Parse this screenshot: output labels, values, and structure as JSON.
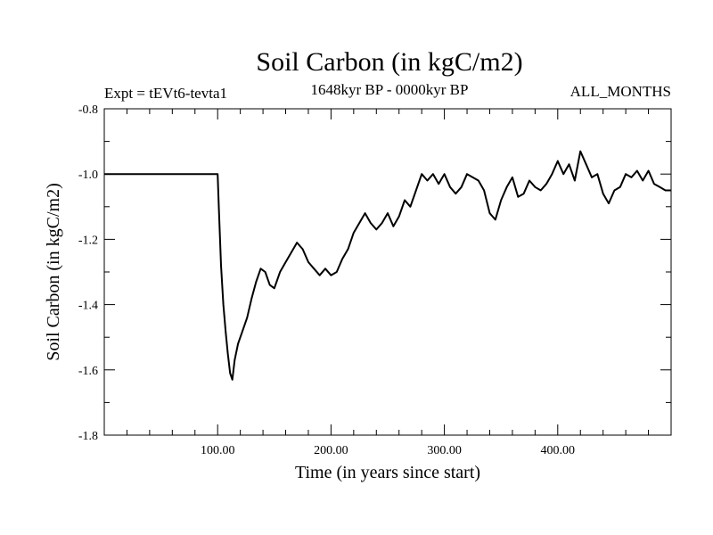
{
  "header": {
    "title": "Soil Carbon (in kgC/m2)",
    "experiment": "Expt = tEVt6-tevta1",
    "period": "1648kyr BP - 0000kyr BP",
    "season": "ALL_MONTHS"
  },
  "chart_data": {
    "type": "line",
    "title": "Soil Carbon (in kgC/m2)",
    "xlabel": "Time (in years since start)",
    "ylabel": "Soil Carbon (in kgC/m2)",
    "xlim": [
      0,
      500
    ],
    "ylim": [
      -1.8,
      -0.8
    ],
    "x_ticks": [
      100,
      200,
      300,
      400
    ],
    "x_tick_labels": [
      "100.00",
      "200.00",
      "300.00",
      "400.00"
    ],
    "y_ticks": [
      -1.8,
      -1.6,
      -1.4,
      -1.2,
      -1.0,
      -0.8
    ],
    "y_tick_labels": [
      "-1.8",
      "-1.6",
      "-1.4",
      "-1.2",
      "-1.0",
      "-0.8"
    ],
    "grid": false,
    "series": [
      {
        "name": "Soil Carbon",
        "color": "#000000",
        "x": [
          0,
          100,
          101,
          103,
          105,
          107,
          109,
          111,
          113,
          115,
          118,
          122,
          126,
          130,
          134,
          138,
          142,
          146,
          150,
          155,
          160,
          165,
          170,
          175,
          180,
          185,
          190,
          195,
          200,
          205,
          210,
          215,
          220,
          225,
          230,
          235,
          240,
          245,
          250,
          255,
          260,
          265,
          270,
          275,
          280,
          285,
          290,
          295,
          300,
          305,
          310,
          315,
          320,
          325,
          330,
          335,
          340,
          345,
          350,
          355,
          360,
          365,
          370,
          375,
          380,
          385,
          390,
          395,
          400,
          405,
          410,
          415,
          420,
          425,
          430,
          435,
          440,
          445,
          450,
          455,
          460,
          465,
          470,
          475,
          480,
          485,
          490,
          495,
          500
        ],
        "values": [
          -1.0,
          -1.0,
          -1.1,
          -1.28,
          -1.4,
          -1.48,
          -1.55,
          -1.61,
          -1.63,
          -1.57,
          -1.52,
          -1.48,
          -1.44,
          -1.38,
          -1.33,
          -1.29,
          -1.3,
          -1.34,
          -1.35,
          -1.3,
          -1.27,
          -1.24,
          -1.21,
          -1.23,
          -1.27,
          -1.29,
          -1.31,
          -1.29,
          -1.31,
          -1.3,
          -1.26,
          -1.23,
          -1.18,
          -1.15,
          -1.12,
          -1.15,
          -1.17,
          -1.15,
          -1.12,
          -1.16,
          -1.13,
          -1.08,
          -1.1,
          -1.05,
          -1.0,
          -1.02,
          -1.0,
          -1.03,
          -1.0,
          -1.04,
          -1.06,
          -1.04,
          -1.0,
          -1.01,
          -1.02,
          -1.05,
          -1.12,
          -1.14,
          -1.08,
          -1.04,
          -1.01,
          -1.07,
          -1.06,
          -1.02,
          -1.04,
          -1.05,
          -1.03,
          -1.0,
          -0.96,
          -1.0,
          -0.97,
          -1.02,
          -0.93,
          -0.97,
          -1.01,
          -1.0,
          -1.06,
          -1.09,
          -1.05,
          -1.04,
          -1.0,
          -1.01,
          -0.99,
          -1.02,
          -0.99,
          -1.03,
          -1.04,
          -1.05,
          -1.05
        ]
      }
    ]
  }
}
